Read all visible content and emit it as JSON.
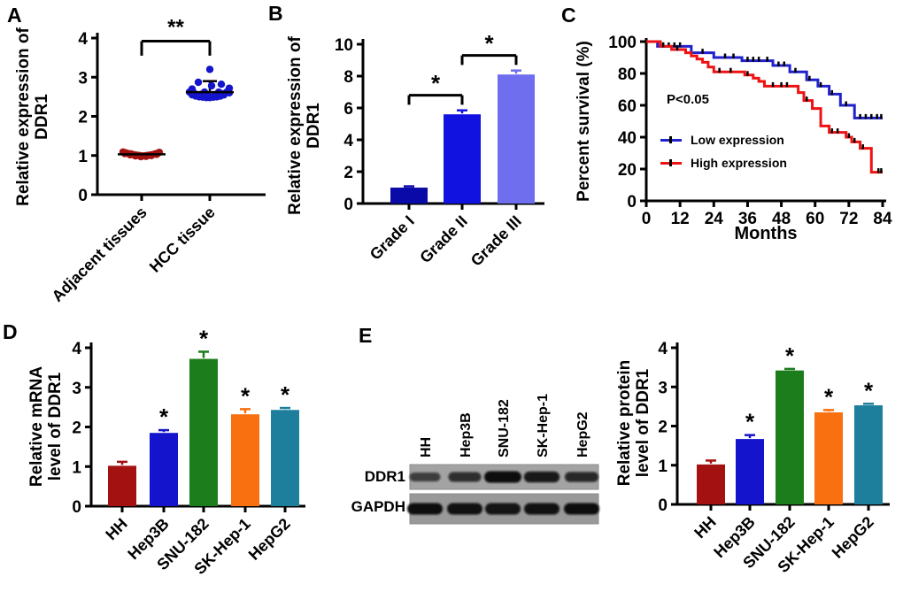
{
  "figure": {
    "background": "#ffffff"
  },
  "panels": {
    "A": {
      "label": "A",
      "ylabel_line1": "Relative expression of",
      "ylabel_line2": "DDR1"
    },
    "B": {
      "label": "B",
      "ylabel_line1": "Relative expression of",
      "ylabel_line2": "DDR1"
    },
    "C": {
      "label": "C",
      "ylabel": "Percent survival (%)",
      "xlabel": "Months",
      "pvalue": "P<0.05",
      "legend": [
        {
          "label": "Low expression",
          "color": "#2121CC"
        },
        {
          "label": "High expression",
          "color": "#EE1212"
        }
      ]
    },
    "D": {
      "label": "D",
      "ylabel_line1": "Relative mRNA",
      "ylabel_line2": "level of DDR1"
    },
    "E": {
      "label": "E",
      "blot_row1": "DDR1",
      "blot_row2": "GAPDH",
      "ylabel_line1": "Relative protein",
      "ylabel_line2": "level of DDR1"
    }
  },
  "chart_data": [
    {
      "id": "A",
      "type": "scatter",
      "title": "",
      "ylabel": "Relative expression of DDR1",
      "ylim": [
        0,
        4
      ],
      "yticks": [
        0,
        1,
        2,
        3,
        4
      ],
      "categories": [
        "Adjacent tissues",
        "HCC tissue"
      ],
      "groups": [
        {
          "name": "Adjacent tissues",
          "color": "#A31111",
          "mean": 1.03,
          "points": [
            [
              -21,
              1.09
            ],
            [
              -18,
              1.07
            ],
            [
              -15,
              1.05
            ],
            [
              -12,
              1.04
            ],
            [
              -9,
              1.02
            ],
            [
              -6,
              1.01
            ],
            [
              -3,
              1.0
            ],
            [
              0,
              0.99
            ],
            [
              3,
              0.99
            ],
            [
              6,
              1.0
            ],
            [
              9,
              1.01
            ],
            [
              12,
              1.02
            ],
            [
              15,
              1.04
            ],
            [
              18,
              1.06
            ],
            [
              -19,
              1.05
            ],
            [
              -13,
              1.02
            ],
            [
              -7,
              0.99
            ],
            [
              -1,
              0.97
            ],
            [
              5,
              0.98
            ],
            [
              11,
              1.0
            ],
            [
              17,
              1.03
            ],
            [
              20,
              1.08
            ]
          ]
        },
        {
          "name": "HCC tissue",
          "color": "#1414CC",
          "mean": 2.62,
          "err_top": 2.9,
          "points": [
            [
              -20,
              2.55
            ],
            [
              -16,
              2.52
            ],
            [
              -12,
              2.5
            ],
            [
              -8,
              2.49
            ],
            [
              -4,
              2.48
            ],
            [
              0,
              2.48
            ],
            [
              4,
              2.49
            ],
            [
              8,
              2.5
            ],
            [
              12,
              2.52
            ],
            [
              16,
              2.55
            ],
            [
              -18,
              2.6
            ],
            [
              -10,
              2.56
            ],
            [
              -2,
              2.54
            ],
            [
              6,
              2.55
            ],
            [
              14,
              2.58
            ],
            [
              19,
              2.62
            ],
            [
              -23,
              2.62
            ],
            [
              22,
              2.6
            ],
            [
              10,
              2.62
            ],
            [
              -6,
              2.62
            ],
            [
              0,
              3.2
            ],
            [
              -13,
              2.87
            ],
            [
              2,
              2.78
            ],
            [
              13,
              2.82
            ],
            [
              22,
              2.72
            ],
            [
              -20,
              2.7
            ]
          ]
        }
      ],
      "significance": [
        {
          "label": "**",
          "from": 0,
          "to": 1,
          "bar_y": 3.92,
          "drop_to": 3.55,
          "label_y": 4.25
        }
      ]
    },
    {
      "id": "B",
      "type": "bar",
      "title": "",
      "ylabel": "Relative expression of DDR1",
      "ylim": [
        0,
        10
      ],
      "yticks": [
        0,
        2,
        4,
        6,
        8,
        10
      ],
      "categories": [
        "Grade I",
        "Grade II",
        "Grade III"
      ],
      "values": [
        1.0,
        5.6,
        8.1
      ],
      "errors": [
        0.08,
        0.25,
        0.25
      ],
      "colors": [
        "#0A0AA8",
        "#1212E0",
        "#6E6EEE"
      ],
      "significance": [
        {
          "label": "*",
          "from": 0,
          "to": 1,
          "bar_y": 6.8,
          "drop_to": 6.2,
          "label_y": 7.5
        },
        {
          "label": "*",
          "from": 1,
          "to": 2,
          "bar_y": 9.3,
          "drop_to": 8.7,
          "label_y": 10.0
        }
      ]
    },
    {
      "id": "C",
      "type": "line",
      "subtype": "kaplan-meier",
      "title": "",
      "ylabel": "Percent survival (%)",
      "xlabel": "Months",
      "ylim": [
        0,
        100
      ],
      "xlim": [
        0,
        84
      ],
      "yticks": [
        0,
        20,
        40,
        60,
        80,
        100
      ],
      "xticks": [
        0,
        12,
        24,
        36,
        48,
        60,
        72,
        84
      ],
      "pvalue": "P<0.05",
      "legend_position": "inside-left",
      "series": [
        {
          "name": "Low expression",
          "color": "#2121CC",
          "steps": [
            [
              0,
              100
            ],
            [
              4,
              97
            ],
            [
              16,
              93
            ],
            [
              24,
              90
            ],
            [
              34,
              88
            ],
            [
              45,
              85
            ],
            [
              51,
              81
            ],
            [
              57,
              76
            ],
            [
              61,
              72
            ],
            [
              65,
              67
            ],
            [
              69,
              60
            ],
            [
              74,
              52
            ],
            [
              84,
              52
            ]
          ],
          "censors": [
            [
              6,
              97
            ],
            [
              8,
              97
            ],
            [
              10,
              97
            ],
            [
              12,
              97
            ],
            [
              20,
              93
            ],
            [
              28,
              90
            ],
            [
              31,
              90
            ],
            [
              36,
              88
            ],
            [
              38,
              88
            ],
            [
              40,
              88
            ],
            [
              43,
              88
            ],
            [
              47,
              85
            ],
            [
              49,
              85
            ],
            [
              53,
              81
            ],
            [
              58,
              76
            ],
            [
              62,
              72
            ],
            [
              66,
              67
            ],
            [
              71,
              60
            ],
            [
              76,
              52
            ],
            [
              78,
              52
            ],
            [
              80,
              52
            ],
            [
              82,
              52
            ],
            [
              83.5,
              52
            ]
          ]
        },
        {
          "name": "High expression",
          "color": "#EE1212",
          "steps": [
            [
              0,
              100
            ],
            [
              5,
              97
            ],
            [
              9,
              95
            ],
            [
              14,
              93
            ],
            [
              16,
              91
            ],
            [
              18,
              89
            ],
            [
              20,
              87
            ],
            [
              22,
              84
            ],
            [
              24,
              81
            ],
            [
              35,
              79
            ],
            [
              38,
              77
            ],
            [
              40,
              75
            ],
            [
              42,
              72
            ],
            [
              54,
              68
            ],
            [
              56,
              63
            ],
            [
              59,
              58
            ],
            [
              62,
              47
            ],
            [
              65,
              43
            ],
            [
              71,
              40
            ],
            [
              73,
              37
            ],
            [
              76,
              33
            ],
            [
              80,
              18
            ],
            [
              84,
              18
            ]
          ],
          "censors": [
            [
              6,
              97
            ],
            [
              11,
              95
            ],
            [
              26,
              81
            ],
            [
              30,
              81
            ],
            [
              36,
              79
            ],
            [
              45,
              72
            ],
            [
              48,
              72
            ],
            [
              50,
              72
            ],
            [
              57,
              63
            ],
            [
              66,
              43
            ],
            [
              68,
              43
            ],
            [
              72,
              40
            ],
            [
              74,
              37
            ],
            [
              77,
              33
            ],
            [
              82.5,
              18
            ],
            [
              83.5,
              18
            ]
          ]
        }
      ]
    },
    {
      "id": "D",
      "type": "bar",
      "title": "",
      "ylabel": "Relative mRNA level of DDR1",
      "ylim": [
        0,
        4
      ],
      "yticks": [
        0,
        1,
        2,
        3,
        4
      ],
      "categories": [
        "HH",
        "Hep3B",
        "SNU-182",
        "SK-Hep-1",
        "HepG2"
      ],
      "values": [
        1.02,
        1.85,
        3.72,
        2.32,
        2.43
      ],
      "errors": [
        0.1,
        0.07,
        0.18,
        0.13,
        0.05
      ],
      "colors": [
        "#A31111",
        "#1414CC",
        "#1C7D1C",
        "#F8700F",
        "#1D7F9C"
      ],
      "star_label": "*",
      "star_indices": [
        1,
        2,
        3,
        4
      ]
    },
    {
      "id": "E_blot",
      "type": "western-blot",
      "lanes": [
        "HH",
        "Hep3B",
        "SNU-182",
        "SK-Hep-1",
        "HepG2"
      ],
      "rows": [
        {
          "label": "DDR1",
          "band_intensities": [
            0.5,
            0.65,
            1.0,
            0.88,
            0.72
          ]
        },
        {
          "label": "GAPDH",
          "band_intensities": [
            1.0,
            0.97,
            0.95,
            0.97,
            1.0
          ]
        }
      ]
    },
    {
      "id": "E_bar",
      "type": "bar",
      "title": "",
      "ylabel": "Relative protein level of DDR1",
      "ylim": [
        0,
        4
      ],
      "yticks": [
        0,
        1,
        2,
        3,
        4
      ],
      "categories": [
        "HH",
        "Hep3B",
        "SNU-182",
        "SK-Hep-1",
        "HepG2"
      ],
      "values": [
        1.02,
        1.67,
        3.42,
        2.35,
        2.53
      ],
      "errors": [
        0.1,
        0.1,
        0.04,
        0.06,
        0.04
      ],
      "colors": [
        "#A31111",
        "#1414CC",
        "#1C7D1C",
        "#F8700F",
        "#1D7F9C"
      ],
      "star_label": "*",
      "star_indices": [
        1,
        2,
        3,
        4
      ]
    }
  ]
}
